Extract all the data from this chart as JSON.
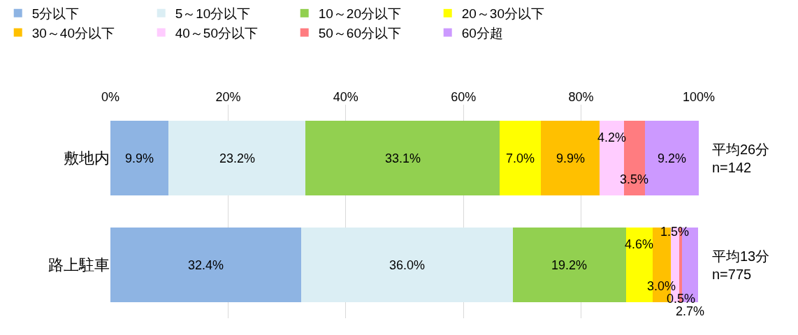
{
  "chart_data": {
    "type": "bar",
    "orientation": "horizontal",
    "stacked": true,
    "categories": [
      "敷地内",
      "路上駐車"
    ],
    "series": [
      {
        "name": "5分以下",
        "color": "#8eb4e3",
        "values": [
          9.9,
          32.4
        ],
        "value_labels": [
          "9.9%",
          "32.4%"
        ]
      },
      {
        "name": "5～10分以下",
        "color": "#dbeef4",
        "values": [
          23.2,
          36.0
        ],
        "value_labels": [
          "23.2%",
          "36.0%"
        ]
      },
      {
        "name": "10～20分以下",
        "color": "#92d050",
        "values": [
          33.1,
          19.2
        ],
        "value_labels": [
          "33.1%",
          "19.2%"
        ]
      },
      {
        "name": "20～30分以下",
        "color": "#ffff00",
        "values": [
          7.0,
          4.6
        ],
        "value_labels": [
          "7.0%",
          "4.6%"
        ]
      },
      {
        "name": "30～40分以下",
        "color": "#ffc000",
        "values": [
          9.9,
          3.0
        ],
        "value_labels": [
          "9.9%",
          "3.0%"
        ]
      },
      {
        "name": "40～50分以下",
        "color": "#ffccff",
        "values": [
          4.2,
          1.5
        ],
        "value_labels": [
          "4.2%",
          "1.5%"
        ]
      },
      {
        "name": "50～60分以下",
        "color": "#ff7c80",
        "values": [
          3.5,
          0.5
        ],
        "value_labels": [
          "3.5%",
          "0.5%"
        ]
      },
      {
        "name": "60分超",
        "color": "#cc99ff",
        "values": [
          9.2,
          2.7
        ],
        "value_labels": [
          "9.2%",
          "2.7%"
        ]
      }
    ],
    "xlim": [
      0,
      100
    ],
    "xticks": [
      {
        "value": 0,
        "label": "0%"
      },
      {
        "value": 20,
        "label": "20%"
      },
      {
        "value": 40,
        "label": "40%"
      },
      {
        "value": 60,
        "label": "60%"
      },
      {
        "value": 80,
        "label": "80%"
      },
      {
        "value": 100,
        "label": "100%"
      }
    ],
    "grid": "x",
    "legend": "top",
    "annotations": [
      "平均26分\nn=142",
      "平均13分\nn=775"
    ]
  }
}
